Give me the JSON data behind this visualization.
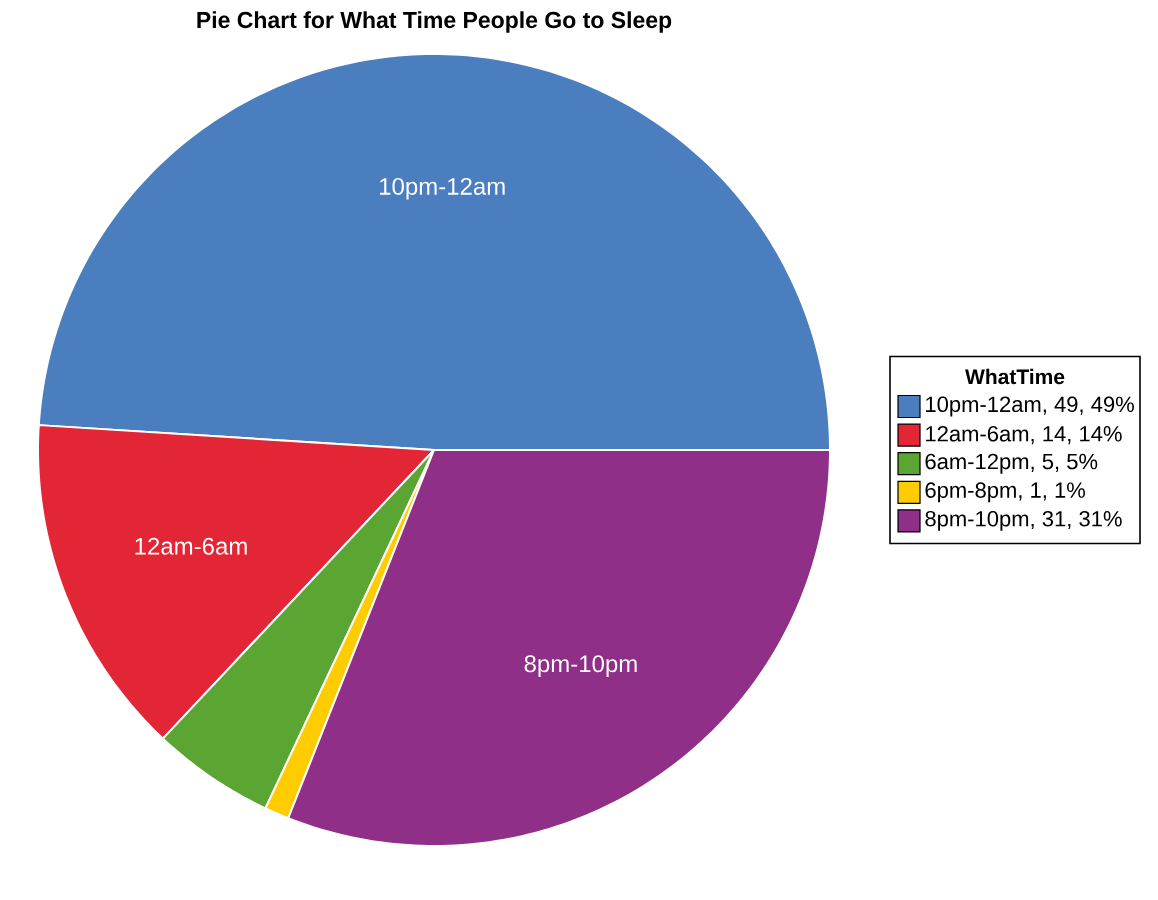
{
  "chart_data": {
    "type": "pie",
    "title": "Pie Chart for What Time People Go to Sleep",
    "legend_title": "WhatTime",
    "categories": [
      "10pm-12am",
      "12am-6am",
      "6am-12pm",
      "6pm-8pm",
      "8pm-10pm"
    ],
    "values": [
      49,
      14,
      5,
      1,
      31
    ],
    "value_labels": [
      ", 49, 49%",
      ", 14, 14%",
      ", 5, 5%",
      ", 1, 1%",
      ", 31, 31%"
    ],
    "colors": [
      "#4a7ebf",
      "#e32636",
      "#5ba532",
      "#ffcc00",
      "#8f2f88"
    ],
    "legend": "right"
  }
}
